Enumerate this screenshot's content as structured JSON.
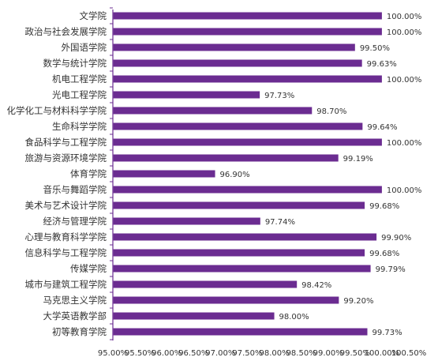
{
  "chart_data": {
    "type": "bar",
    "orientation": "horizontal",
    "categories": [
      "文学院",
      "政治与社会发展学院",
      "外国语学院",
      "数学与统计学院",
      "机电工程学院",
      "光电工程学院",
      "化学化工与材料科学学院",
      "生命科学学院",
      "食品科学与工程学院",
      "旅游与资源环境学院",
      "体育学院",
      "音乐与舞蹈学院",
      "美术与艺术设计学院",
      "经济与管理学院",
      "心理与教育科学学院",
      "信息科学与工程学院",
      "传媒学院",
      "城市与建筑工程学院",
      "马克思主义学院",
      "大学英语教学部",
      "初等教育学院"
    ],
    "values": [
      100.0,
      100.0,
      99.5,
      99.63,
      100.0,
      97.73,
      98.7,
      99.64,
      100.0,
      99.19,
      96.9,
      100.0,
      99.68,
      97.74,
      99.9,
      99.68,
      99.79,
      98.42,
      99.2,
      98.0,
      99.73
    ],
    "value_labels": [
      "100.00%",
      "100.00%",
      "99.50%",
      "99.63%",
      "100.00%",
      "97.73%",
      "98.70%",
      "99.64%",
      "100.00%",
      "99.19%",
      "96.90%",
      "100.00%",
      "99.68%",
      "97.74%",
      "99.90%",
      "99.68%",
      "99.79%",
      "98.42%",
      "99.20%",
      "98.00%",
      "99.73%"
    ],
    "xlim": [
      95.0,
      100.5
    ],
    "xticks": [
      "95.00%",
      "95.50%",
      "96.00%",
      "96.50%",
      "97.00%",
      "97.50%",
      "98.00%",
      "98.50%",
      "99.00%",
      "99.50%",
      "100.00%",
      "100.50%"
    ],
    "title": "",
    "xlabel": "",
    "ylabel": "",
    "grid": false,
    "bar_color": "#6B2C91",
    "axis_color": "#6B2C91"
  }
}
